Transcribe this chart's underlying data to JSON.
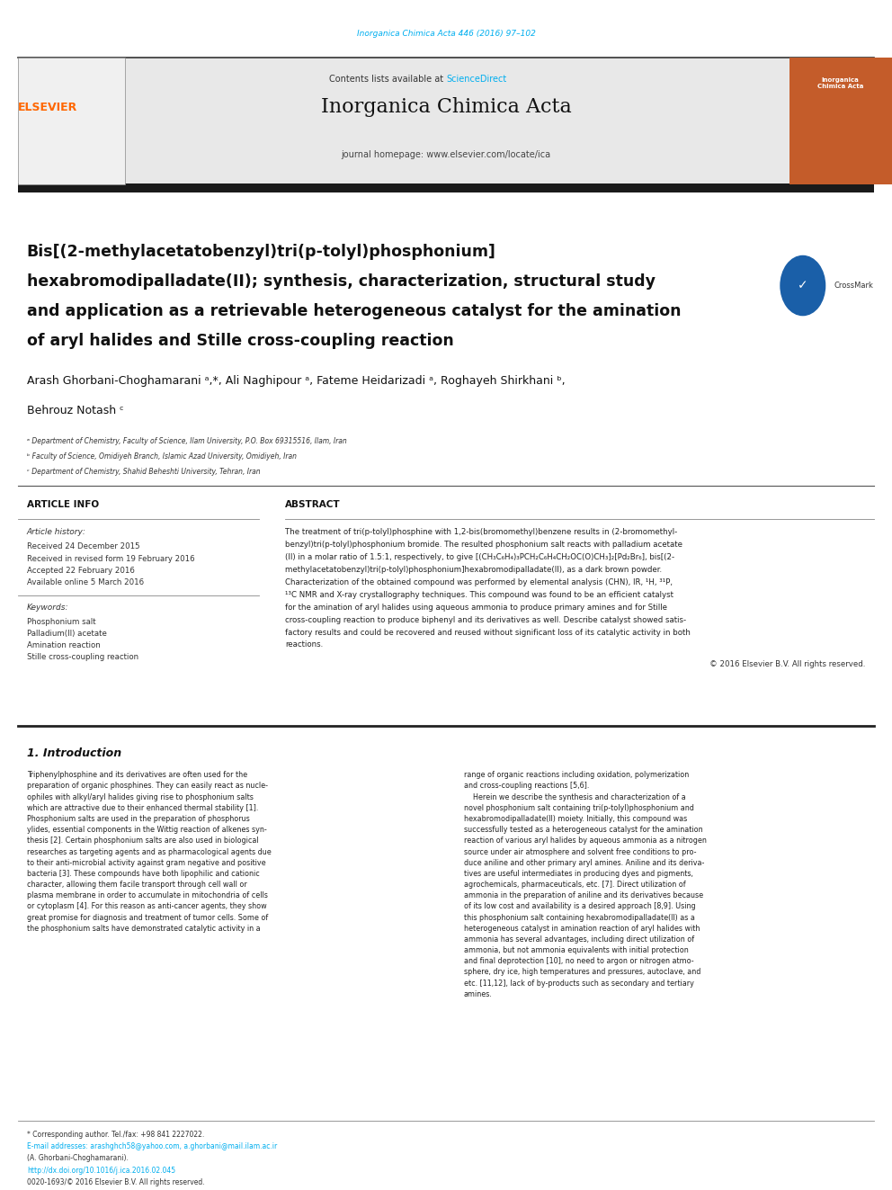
{
  "page_width": 9.92,
  "page_height": 13.23,
  "background_color": "#ffffff",
  "journal_ref_color": "#00aeef",
  "journal_ref_text": "Inorganica Chimica Acta 446 (2016) 97–102",
  "header_bg_color": "#e8e8e8",
  "elsevier_color": "#ff6600",
  "elsevier_text": "ELSEVIER",
  "contents_text": "Contents lists available at ",
  "sciencedirect_text": "ScienceDirect",
  "sciencedirect_color": "#00aeef",
  "journal_name": "Inorganica Chimica Acta",
  "homepage_text": "journal homepage: www.elsevier.com/locate/ica",
  "title_line1": "Bis[(2-methylacetatobenzyl)tri(p-tolyl)phosphonium]",
  "title_line2": "hexabromodipalladate(II); synthesis, characterization, structural study",
  "title_line3": "and application as a retrievable heterogeneous catalyst for the amination",
  "title_line4": "of aryl halides and Stille cross-coupling reaction",
  "authors": "Arash Ghorbani-Choghamarani ᵃ,*, Ali Naghipour ᵃ, Fateme Heidarizadi ᵃ, Roghayeh Shirkhani ᵇ,",
  "authors2": "Behrouz Notash ᶜ",
  "affil_a": "ᵃ Department of Chemistry, Faculty of Science, Ilam University, P.O. Box 69315516, Ilam, Iran",
  "affil_b": "ᵇ Faculty of Science, Omidiyeh Branch, Islamic Azad University, Omidiyeh, Iran",
  "affil_c": "ᶜ Department of Chemistry, Shahid Beheshti University, Tehran, Iran",
  "article_info_header": "ARTICLE INFO",
  "abstract_header": "ABSTRACT",
  "article_history_label": "Article history:",
  "received_text": "Received 24 December 2015",
  "revised_text": "Received in revised form 19 February 2016",
  "accepted_text": "Accepted 22 February 2016",
  "online_text": "Available online 5 March 2016",
  "keywords_label": "Keywords:",
  "keyword1": "Phosphonium salt",
  "keyword2": "Palladium(II) acetate",
  "keyword3": "Amination reaction",
  "keyword4": "Stille cross-coupling reaction",
  "abstract_text": "The treatment of tri(p-tolyl)phosphine with 1,2-bis(bromomethyl)benzene results in (2-bromomethyl-\nbenzyl)tri(p-tolyl)phosphonium bromide. The resulted phosphonium salt reacts with palladium acetate\n(II) in a molar ratio of 1.5:1, respectively, to give [(CH₃C₆H₄)₃PCH₂C₆H₄CH₂OC(O)CH₃]₂[Pd₂Br₆], bis[(2-\nmethylacetatobenzyl)tri(p-tolyl)phosphonium]hexabromodipalladate(II), as a dark brown powder.\nCharacterization of the obtained compound was performed by elemental analysis (CHN), IR, ¹H, ³¹P,\n¹³C NMR and X-ray crystallography techniques. This compound was found to be an efficient catalyst\nfor the amination of aryl halides using aqueous ammonia to produce primary amines and for Stille\ncross-coupling reaction to produce biphenyl and its derivatives as well. Describe catalyst showed satis-\nfactory results and could be recovered and reused without significant loss of its catalytic activity in both\nreactions.",
  "copyright_text": "© 2016 Elsevier B.V. All rights reserved.",
  "section1_header": "1. Introduction",
  "intro_col1": "Triphenylphosphine and its derivatives are often used for the\npreparation of organic phosphines. They can easily react as nucle-\nophiles with alkyl/aryl halides giving rise to phosphonium salts\nwhich are attractive due to their enhanced thermal stability [1].\nPhosphonium salts are used in the preparation of phosphorus\nylides, essential components in the Wittig reaction of alkenes syn-\nthesis [2]. Certain phosphonium salts are also used in biological\nresearches as targeting agents and as pharmacological agents due\nto their anti-microbial activity against gram negative and positive\nbacteria [3]. These compounds have both lipophilic and cationic\ncharacter, allowing them facile transport through cell wall or\nplasma membrane in order to accumulate in mitochondria of cells\nor cytoplasm [4]. For this reason as anti-cancer agents, they show\ngreat promise for diagnosis and treatment of tumor cells. Some of\nthe phosphonium salts have demonstrated catalytic activity in a",
  "intro_col2": "range of organic reactions including oxidation, polymerization\nand cross-coupling reactions [5,6].\n    Herein we describe the synthesis and characterization of a\nnovel phosphonium salt containing tri(p-tolyl)phosphonium and\nhexabromodipalladate(II) moiety. Initially, this compound was\nsuccessfully tested as a heterogeneous catalyst for the amination\nreaction of various aryl halides by aqueous ammonia as a nitrogen\nsource under air atmosphere and solvent free conditions to pro-\nduce aniline and other primary aryl amines. Aniline and its deriva-\ntives are useful intermediates in producing dyes and pigments,\nagrochemicals, pharmaceuticals, etc. [7]. Direct utilization of\nammonia in the preparation of aniline and its derivatives because\nof its low cost and availability is a desired approach [8,9]. Using\nthis phosphonium salt containing hexabromodipalladate(II) as a\nheterogeneous catalyst in amination reaction of aryl halides with\nammonia has several advantages, including direct utilization of\nammonia, but not ammonia equivalents with initial protection\nand final deprotection [10], no need to argon or nitrogen atmo-\nsphere, dry ice, high temperatures and pressures, autoclave, and\netc. [11,12], lack of by-products such as secondary and tertiary\namines.",
  "footer_text1": "* Corresponding author. Tel./fax: +98 841 2227022.",
  "footer_text2": "E-mail addresses: arashghch58@yahoo.com, a.ghorbani@mail.ilam.ac.ir",
  "footer_text3": "(A. Ghorbani-Choghamarani).",
  "doi_text": "http://dx.doi.org/10.1016/j.ica.2016.02.045",
  "doi_color": "#00aeef",
  "issn_text": "0020-1693/© 2016 Elsevier B.V. All rights reserved.",
  "black_bar_color": "#1a1a1a",
  "link_color": "#00aeef"
}
